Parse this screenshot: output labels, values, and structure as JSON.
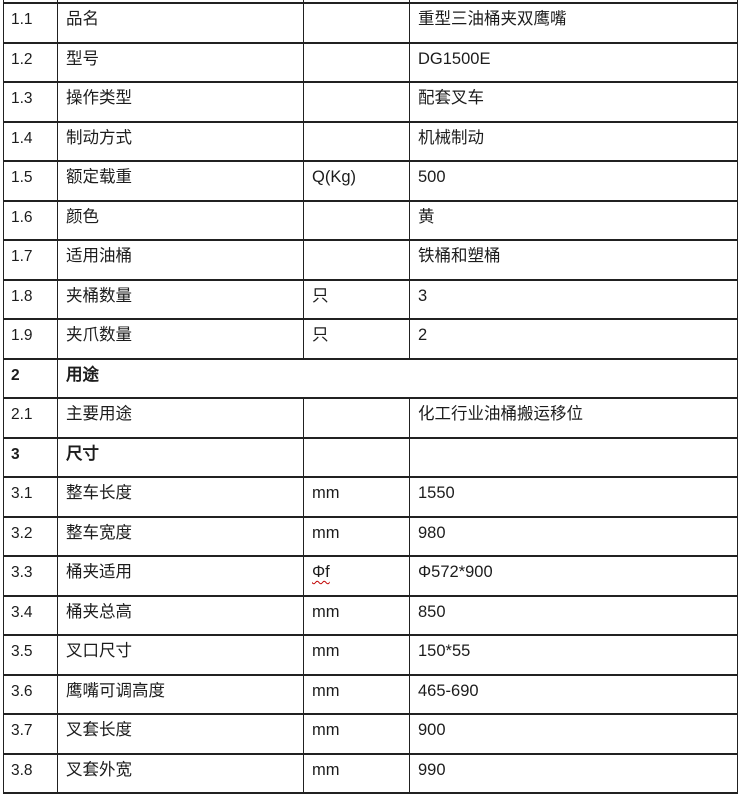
{
  "colors": {
    "border": "#212121",
    "text": "#1c1c1c",
    "spellcheck_underline": "#c00000",
    "background": "#ffffff"
  },
  "table": {
    "rows": [
      {
        "num": "1.1",
        "label": "品名",
        "unit": "",
        "value": "重型三油桶夹双鹰嘴"
      },
      {
        "num": "1.2",
        "label": "型号",
        "unit": "",
        "value": "DG1500E"
      },
      {
        "num": "1.3",
        "label": "操作类型",
        "unit": "",
        "value": "配套叉车"
      },
      {
        "num": "1.4",
        "label": "制动方式",
        "unit": "",
        "value": "机械制动"
      },
      {
        "num": "1.5",
        "label": "额定载重",
        "unit": "Q(Kg)",
        "value": "500"
      },
      {
        "num": "1.6",
        "label": "颜色",
        "unit": "",
        "value": "黄"
      },
      {
        "num": "1.7",
        "label": "适用油桶",
        "unit": "",
        "value": "铁桶和塑桶"
      },
      {
        "num": "1.8",
        "label": "夹桶数量",
        "unit": "只",
        "value": "3"
      },
      {
        "num": "1.9",
        "label": "夹爪数量",
        "unit": "只",
        "value": "2"
      },
      {
        "num": "2",
        "label": "用途",
        "merged": true,
        "bold": true
      },
      {
        "num": "2.1",
        "label": "主要用途",
        "unit": "",
        "value": "化工行业油桶搬运移位"
      },
      {
        "num": "3",
        "label": "尺寸",
        "unit": "",
        "value": "",
        "bold": true
      },
      {
        "num": "3.1",
        "label": "整车长度",
        "unit": "mm",
        "value": "1550"
      },
      {
        "num": "3.2",
        "label": "整车宽度",
        "unit": "mm",
        "value": "980"
      },
      {
        "num": "3.3",
        "label": "桶夹适用",
        "unit": "Φf",
        "unit_spellchecked": true,
        "value": "Φ572*900"
      },
      {
        "num": "3.4",
        "label": "桶夹总高",
        "unit": "mm",
        "value": "850"
      },
      {
        "num": "3.5",
        "label": "叉口尺寸",
        "unit": "mm",
        "value": "150*55"
      },
      {
        "num": "3.6",
        "label": "鹰嘴可调高度",
        "unit": "mm",
        "value": "465-690"
      },
      {
        "num": "3.7",
        "label": "叉套长度",
        "unit": "mm",
        "value": "900"
      },
      {
        "num": "3.8",
        "label": "叉套外宽",
        "unit": "mm",
        "value": "990"
      }
    ]
  }
}
